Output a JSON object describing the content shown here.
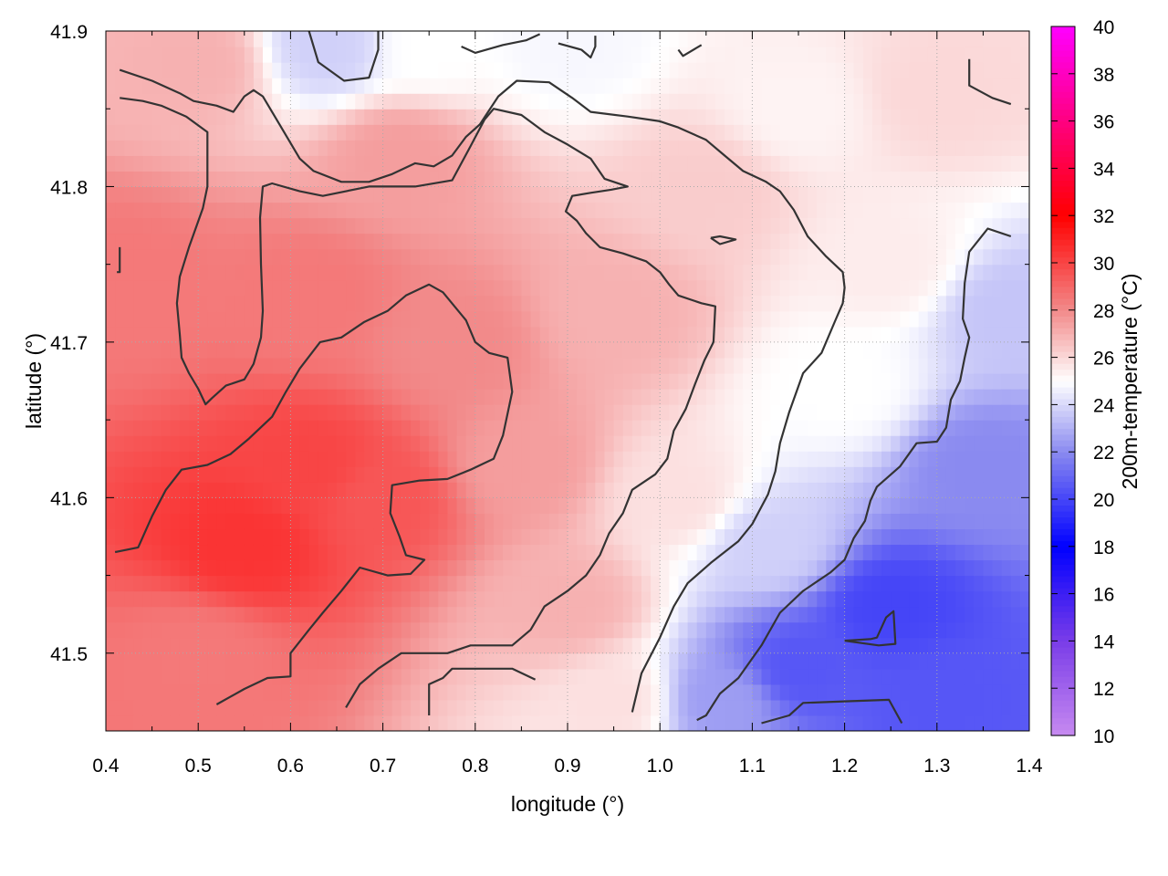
{
  "chart_data": {
    "type": "heatmap",
    "xlabel": "longitude (°)",
    "ylabel": "latitude (°)",
    "colorbar_label": "200m-temperature (°C)",
    "xlim": [
      0.4,
      1.4
    ],
    "ylim": [
      41.45,
      41.9
    ],
    "xticks": [
      "0.4",
      "0.5",
      "0.6",
      "0.7",
      "0.8",
      "0.9",
      "1.0",
      "1.1",
      "1.2",
      "1.3",
      "1.4"
    ],
    "yticks": [
      "41.5",
      "41.6",
      "41.7",
      "41.8",
      "41.9"
    ],
    "colorbar_ticks": [
      "10",
      "12",
      "14",
      "16",
      "18",
      "20",
      "22",
      "24",
      "26",
      "28",
      "30",
      "32",
      "34",
      "36",
      "38",
      "40"
    ],
    "clim": [
      10,
      40
    ],
    "grid": true,
    "colormap": [
      {
        "t": 10,
        "color": "#c78af0"
      },
      {
        "t": 14,
        "color": "#7a3de8"
      },
      {
        "t": 18,
        "color": "#0000ff"
      },
      {
        "t": 22,
        "color": "#8a8af0"
      },
      {
        "t": 25,
        "color": "#ffffff"
      },
      {
        "t": 28,
        "color": "#f28a8a"
      },
      {
        "t": 32,
        "color": "#ff0000"
      },
      {
        "t": 36,
        "color": "#ff0080"
      },
      {
        "t": 40,
        "color": "#ff00ff"
      }
    ],
    "field_centers": [
      {
        "lon": 0.42,
        "lat": 41.74,
        "temp": 28.5
      },
      {
        "lon": 0.55,
        "lat": 41.57,
        "temp": 30.5
      },
      {
        "lon": 0.62,
        "lat": 41.62,
        "temp": 30.0
      },
      {
        "lon": 0.7,
        "lat": 41.6,
        "temp": 29.5
      },
      {
        "lon": 0.5,
        "lat": 41.5,
        "temp": 28.5
      },
      {
        "lon": 0.62,
        "lat": 41.73,
        "temp": 28.5
      },
      {
        "lon": 0.78,
        "lat": 41.7,
        "temp": 28.0
      },
      {
        "lon": 0.85,
        "lat": 41.62,
        "temp": 27.5
      },
      {
        "lon": 0.9,
        "lat": 41.53,
        "temp": 27.0
      },
      {
        "lon": 0.72,
        "lat": 41.82,
        "temp": 27.5
      },
      {
        "lon": 0.95,
        "lat": 41.72,
        "temp": 27.0
      },
      {
        "lon": 1.05,
        "lat": 41.8,
        "temp": 26.3
      },
      {
        "lon": 1.02,
        "lat": 41.6,
        "temp": 25.8
      },
      {
        "lon": 0.95,
        "lat": 41.47,
        "temp": 25.8
      },
      {
        "lon": 0.5,
        "lat": 41.88,
        "temp": 27.0
      },
      {
        "lon": 0.75,
        "lat": 41.89,
        "temp": 25.0
      },
      {
        "lon": 0.64,
        "lat": 41.89,
        "temp": 23.8
      },
      {
        "lon": 0.9,
        "lat": 41.89,
        "temp": 24.8
      },
      {
        "lon": 1.15,
        "lat": 41.85,
        "temp": 25.3
      },
      {
        "lon": 1.3,
        "lat": 41.86,
        "temp": 26.0
      },
      {
        "lon": 1.25,
        "lat": 41.75,
        "temp": 25.5
      },
      {
        "lon": 1.38,
        "lat": 41.72,
        "temp": 23.5
      },
      {
        "lon": 1.35,
        "lat": 41.62,
        "temp": 22.0
      },
      {
        "lon": 1.25,
        "lat": 41.53,
        "temp": 20.0
      },
      {
        "lon": 1.15,
        "lat": 41.49,
        "temp": 20.5
      },
      {
        "lon": 1.3,
        "lat": 41.47,
        "temp": 20.5
      },
      {
        "lon": 1.07,
        "lat": 41.47,
        "temp": 22.5
      },
      {
        "lon": 1.12,
        "lat": 41.57,
        "temp": 23.8
      },
      {
        "lon": 1.2,
        "lat": 41.67,
        "temp": 25.0
      }
    ],
    "contour_color": "#333333",
    "contours": [
      [
        [
          0.415,
          41.875
        ],
        [
          0.45,
          41.868
        ],
        [
          0.48,
          41.86
        ],
        [
          0.495,
          41.855
        ],
        [
          0.52,
          41.852
        ],
        [
          0.538,
          41.848
        ],
        [
          0.55,
          41.858
        ],
        [
          0.56,
          41.862
        ],
        [
          0.57,
          41.858
        ],
        [
          0.588,
          41.84
        ],
        [
          0.61,
          41.818
        ],
        [
          0.625,
          41.81
        ],
        [
          0.655,
          41.803
        ],
        [
          0.685,
          41.803
        ],
        [
          0.71,
          41.808
        ],
        [
          0.735,
          41.815
        ],
        [
          0.755,
          41.813
        ],
        [
          0.775,
          41.82
        ],
        [
          0.79,
          41.832
        ],
        [
          0.805,
          41.84
        ],
        [
          0.825,
          41.858
        ],
        [
          0.845,
          41.868
        ],
        [
          0.88,
          41.867
        ],
        [
          0.905,
          41.857
        ],
        [
          0.925,
          41.848
        ],
        [
          0.965,
          41.845
        ],
        [
          1.0,
          41.842
        ],
        [
          1.02,
          41.838
        ],
        [
          1.05,
          41.83
        ],
        [
          1.07,
          41.82
        ],
        [
          1.09,
          41.81
        ],
        [
          1.115,
          41.803
        ],
        [
          1.13,
          41.797
        ],
        [
          1.145,
          41.785
        ],
        [
          1.16,
          41.768
        ],
        [
          1.18,
          41.755
        ],
        [
          1.198,
          41.745
        ],
        [
          1.2,
          41.735
        ],
        [
          1.198,
          41.725
        ],
        [
          1.19,
          41.714
        ],
        [
          1.175,
          41.693
        ],
        [
          1.155,
          41.68
        ],
        [
          1.14,
          41.655
        ],
        [
          1.13,
          41.635
        ],
        [
          1.125,
          41.617
        ],
        [
          1.117,
          41.602
        ],
        [
          1.1,
          41.583
        ],
        [
          1.085,
          41.572
        ],
        [
          1.055,
          41.558
        ],
        [
          1.03,
          41.545
        ],
        [
          1.015,
          41.53
        ],
        [
          1.0,
          41.51
        ],
        [
          0.98,
          41.487
        ],
        [
          0.97,
          41.462
        ]
      ],
      [
        [
          0.415,
          41.857
        ],
        [
          0.44,
          41.855
        ],
        [
          0.46,
          41.852
        ],
        [
          0.487,
          41.845
        ],
        [
          0.51,
          41.835
        ],
        [
          0.51,
          41.8
        ],
        [
          0.505,
          41.786
        ],
        [
          0.49,
          41.761
        ],
        [
          0.48,
          41.742
        ],
        [
          0.477,
          41.725
        ],
        [
          0.48,
          41.705
        ],
        [
          0.482,
          41.69
        ],
        [
          0.49,
          41.68
        ],
        [
          0.5,
          41.67
        ],
        [
          0.508,
          41.66
        ],
        [
          0.515,
          41.664
        ],
        [
          0.53,
          41.672
        ],
        [
          0.55,
          41.676
        ],
        [
          0.56,
          41.686
        ],
        [
          0.568,
          41.703
        ],
        [
          0.57,
          41.72
        ],
        [
          0.568,
          41.75
        ],
        [
          0.567,
          41.78
        ],
        [
          0.57,
          41.8
        ],
        [
          0.58,
          41.802
        ],
        [
          0.61,
          41.797
        ],
        [
          0.635,
          41.794
        ],
        [
          0.685,
          41.8
        ],
        [
          0.735,
          41.8
        ],
        [
          0.775,
          41.804
        ],
        [
          0.795,
          41.826
        ],
        [
          0.81,
          41.843
        ],
        [
          0.82,
          41.85
        ],
        [
          0.85,
          41.846
        ],
        [
          0.875,
          41.835
        ],
        [
          0.9,
          41.827
        ],
        [
          0.925,
          41.818
        ],
        [
          0.94,
          41.805
        ],
        [
          0.965,
          41.8
        ],
        [
          0.947,
          41.798
        ],
        [
          0.925,
          41.796
        ],
        [
          0.905,
          41.794
        ],
        [
          0.898,
          41.784
        ],
        [
          0.91,
          41.778
        ],
        [
          0.92,
          41.77
        ],
        [
          0.935,
          41.761
        ],
        [
          0.96,
          41.757
        ],
        [
          0.985,
          41.752
        ],
        [
          1.0,
          41.745
        ],
        [
          1.01,
          41.737
        ],
        [
          1.02,
          41.73
        ],
        [
          1.045,
          41.725
        ],
        [
          1.06,
          41.723
        ],
        [
          1.058,
          41.7
        ],
        [
          1.048,
          41.688
        ],
        [
          1.038,
          41.673
        ],
        [
          1.028,
          41.657
        ],
        [
          1.015,
          41.643
        ],
        [
          1.008,
          41.625
        ],
        [
          0.995,
          41.615
        ],
        [
          0.97,
          41.605
        ],
        [
          0.96,
          41.59
        ],
        [
          0.945,
          41.577
        ],
        [
          0.935,
          41.563
        ],
        [
          0.92,
          41.55
        ],
        [
          0.9,
          41.54
        ],
        [
          0.875,
          41.53
        ],
        [
          0.86,
          41.515
        ],
        [
          0.84,
          41.505
        ],
        [
          0.795,
          41.505
        ],
        [
          0.77,
          41.5
        ],
        [
          0.72,
          41.5
        ],
        [
          0.695,
          41.49
        ],
        [
          0.675,
          41.48
        ],
        [
          0.66,
          41.465
        ]
      ],
      [
        [
          0.41,
          41.565
        ],
        [
          0.435,
          41.568
        ],
        [
          0.45,
          41.588
        ],
        [
          0.465,
          41.605
        ],
        [
          0.482,
          41.618
        ],
        [
          0.51,
          41.621
        ],
        [
          0.535,
          41.628
        ],
        [
          0.555,
          41.638
        ],
        [
          0.58,
          41.652
        ],
        [
          0.595,
          41.668
        ],
        [
          0.61,
          41.683
        ],
        [
          0.632,
          41.7
        ],
        [
          0.655,
          41.703
        ],
        [
          0.68,
          41.713
        ],
        [
          0.705,
          41.72
        ],
        [
          0.725,
          41.73
        ],
        [
          0.75,
          41.737
        ],
        [
          0.765,
          41.732
        ],
        [
          0.79,
          41.714
        ],
        [
          0.8,
          41.7
        ],
        [
          0.815,
          41.693
        ],
        [
          0.835,
          41.69
        ],
        [
          0.84,
          41.668
        ],
        [
          0.83,
          41.64
        ],
        [
          0.82,
          41.625
        ],
        [
          0.795,
          41.618
        ],
        [
          0.77,
          41.612
        ],
        [
          0.74,
          41.611
        ],
        [
          0.71,
          41.608
        ],
        [
          0.708,
          41.59
        ],
        [
          0.718,
          41.575
        ],
        [
          0.725,
          41.563
        ],
        [
          0.745,
          41.56
        ],
        [
          0.73,
          41.551
        ],
        [
          0.705,
          41.55
        ],
        [
          0.675,
          41.555
        ],
        [
          0.655,
          41.54
        ],
        [
          0.635,
          41.526
        ],
        [
          0.62,
          41.515
        ],
        [
          0.6,
          41.5
        ],
        [
          0.6,
          41.485
        ],
        [
          0.575,
          41.484
        ],
        [
          0.55,
          41.477
        ],
        [
          0.52,
          41.467
        ]
      ],
      [
        [
          0.415,
          41.761
        ],
        [
          0.415,
          41.745
        ],
        [
          0.412,
          41.745
        ]
      ],
      [
        [
          1.055,
          41.767
        ],
        [
          1.065,
          41.768
        ],
        [
          1.082,
          41.766
        ],
        [
          1.065,
          41.763
        ],
        [
          1.055,
          41.767
        ]
      ],
      [
        [
          0.62,
          41.9
        ],
        [
          0.63,
          41.88
        ],
        [
          0.658,
          41.868
        ],
        [
          0.685,
          41.87
        ],
        [
          0.695,
          41.888
        ],
        [
          0.695,
          41.9
        ]
      ],
      [
        [
          0.785,
          41.89
        ],
        [
          0.8,
          41.886
        ],
        [
          0.83,
          41.891
        ],
        [
          0.855,
          41.894
        ],
        [
          0.87,
          41.898
        ]
      ],
      [
        [
          0.89,
          41.892
        ],
        [
          0.915,
          41.888
        ],
        [
          0.925,
          41.883
        ],
        [
          0.93,
          41.89
        ],
        [
          0.93,
          41.897
        ]
      ],
      [
        [
          1.02,
          41.888
        ],
        [
          1.025,
          41.884
        ],
        [
          1.045,
          41.891
        ]
      ],
      [
        [
          1.335,
          41.882
        ],
        [
          1.335,
          41.865
        ],
        [
          1.36,
          41.857
        ],
        [
          1.38,
          41.853
        ]
      ],
      [
        [
          1.38,
          41.768
        ],
        [
          1.355,
          41.773
        ],
        [
          1.335,
          41.758
        ],
        [
          1.33,
          41.738
        ],
        [
          1.328,
          41.715
        ],
        [
          1.335,
          41.703
        ],
        [
          1.33,
          41.69
        ],
        [
          1.325,
          41.675
        ],
        [
          1.315,
          41.663
        ],
        [
          1.31,
          41.645
        ],
        [
          1.3,
          41.636
        ],
        [
          1.278,
          41.635
        ],
        [
          1.26,
          41.62
        ],
        [
          1.235,
          41.607
        ],
        [
          1.228,
          41.598
        ],
        [
          1.222,
          41.585
        ],
        [
          1.21,
          41.574
        ],
        [
          1.2,
          41.56
        ],
        [
          1.185,
          41.552
        ],
        [
          1.155,
          41.54
        ],
        [
          1.13,
          41.526
        ],
        [
          1.11,
          41.505
        ],
        [
          1.085,
          41.484
        ],
        [
          1.065,
          41.474
        ],
        [
          1.05,
          41.46
        ],
        [
          1.04,
          41.457
        ]
      ],
      [
        [
          1.2,
          41.508
        ],
        [
          1.228,
          41.509
        ],
        [
          1.235,
          41.51
        ],
        [
          1.245,
          41.523
        ],
        [
          1.253,
          41.527
        ],
        [
          1.255,
          41.506
        ],
        [
          1.237,
          41.505
        ],
        [
          1.2,
          41.508
        ]
      ],
      [
        [
          1.11,
          41.455
        ],
        [
          1.14,
          41.46
        ],
        [
          1.155,
          41.468
        ],
        [
          1.2,
          41.469
        ],
        [
          1.248,
          41.47
        ],
        [
          1.262,
          41.455
        ]
      ],
      [
        [
          0.75,
          41.46
        ],
        [
          0.75,
          41.48
        ],
        [
          0.765,
          41.484
        ],
        [
          0.775,
          41.49
        ],
        [
          0.8,
          41.49
        ],
        [
          0.84,
          41.49
        ],
        [
          0.865,
          41.483
        ]
      ]
    ]
  }
}
